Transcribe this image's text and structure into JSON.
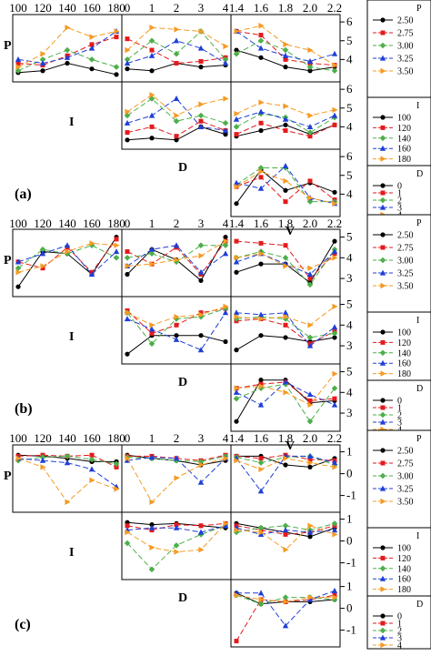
{
  "series_colors": [
    "#000000",
    "#e41a1c",
    "#4daf4a",
    "#1f3fd6",
    "#f59a23"
  ],
  "series_dash": [
    "",
    "6,3",
    "6,3",
    "6,3",
    "6,3"
  ],
  "series_marker": [
    "circle",
    "square",
    "diamond",
    "triangle-up",
    "triangle-right"
  ],
  "factors": {
    "P": {
      "label": "P",
      "levels": [
        "2.50",
        "2.75",
        "3.00",
        "3.25",
        "3.50"
      ]
    },
    "I": {
      "label": "I",
      "levels": [
        "100",
        "120",
        "140",
        "160",
        "180"
      ]
    },
    "D": {
      "label": "D",
      "levels": [
        "0",
        "1",
        "2",
        "3",
        "4"
      ]
    },
    "V": {
      "label": "V",
      "levels": [
        "1.4",
        "1.6",
        "1.8",
        "2.0",
        "2.2"
      ]
    }
  },
  "top_tick_labels": {
    "I": [
      "100",
      "120",
      "140",
      "160",
      "180"
    ],
    "D": [
      "0",
      "1",
      "2",
      "3",
      "4"
    ],
    "V": [
      "1.4",
      "1.6",
      "1.8",
      "2.0",
      "2.2"
    ]
  },
  "chart_data": [
    {
      "type": "line",
      "panel_label": "(a)",
      "right_ticks": [
        "6",
        "5",
        "4"
      ],
      "ylim": [
        3,
        6.2
      ],
      "cells": [
        {
          "row": "P",
          "col": "I",
          "series": [
            [
              3.3,
              3.4,
              3.8,
              3.5,
              3.2
            ],
            [
              3.8,
              3.7,
              4.2,
              4.8,
              5.2
            ],
            [
              3.4,
              4.0,
              4.5,
              4.0,
              3.6
            ],
            [
              4.0,
              3.8,
              4.1,
              4.6,
              5.5
            ],
            [
              3.6,
              4.3,
              5.7,
              5.2,
              5.5
            ]
          ]
        },
        {
          "row": "P",
          "col": "D",
          "series": [
            [
              3.5,
              3.4,
              3.8,
              3.6,
              3.7
            ],
            [
              5.1,
              4.5,
              3.8,
              3.9,
              4.1
            ],
            [
              4.0,
              5.0,
              4.3,
              5.5,
              4.0
            ],
            [
              3.8,
              4.2,
              5.0,
              4.6,
              3.8
            ],
            [
              4.5,
              5.7,
              5.6,
              5.5,
              4.7
            ]
          ]
        },
        {
          "row": "P",
          "col": "V",
          "series": [
            [
              4.5,
              4.1,
              3.6,
              3.4,
              3.6
            ],
            [
              5.5,
              5.3,
              4.0,
              3.8,
              3.7
            ],
            [
              4.3,
              5.0,
              4.5,
              3.6,
              3.4
            ],
            [
              5.5,
              4.6,
              4.2,
              3.9,
              4.3
            ],
            [
              5.5,
              5.8,
              4.8,
              4.5,
              3.7
            ]
          ]
        },
        {
          "row": "I",
          "col": "D",
          "series": [
            [
              3.3,
              3.4,
              3.3,
              4.0,
              3.6
            ],
            [
              3.7,
              4.0,
              3.5,
              4.3,
              3.8
            ],
            [
              4.6,
              5.5,
              4.3,
              4.6,
              4.2
            ],
            [
              4.2,
              4.6,
              5.5,
              4.0,
              3.8
            ],
            [
              4.8,
              5.7,
              4.6,
              5.2,
              5.5
            ]
          ]
        },
        {
          "row": "I",
          "col": "V",
          "series": [
            [
              3.5,
              3.8,
              4.1,
              3.6,
              4.1
            ],
            [
              3.6,
              4.2,
              3.8,
              3.5,
              4.1
            ],
            [
              4.0,
              4.7,
              4.5,
              3.7,
              4.5
            ],
            [
              4.4,
              4.8,
              4.4,
              4.0,
              4.6
            ],
            [
              4.7,
              5.3,
              5.1,
              4.6,
              4.9
            ]
          ]
        },
        {
          "row": "D",
          "col": "V",
          "series": [
            [
              3.5,
              5.3,
              4.2,
              4.6,
              4.1
            ],
            [
              4.4,
              4.9,
              3.6,
              4.7,
              3.7
            ],
            [
              4.5,
              5.4,
              5.4,
              3.6,
              3.6
            ],
            [
              4.6,
              4.3,
              5.5,
              3.8,
              3.5
            ],
            [
              4.4,
              5.2,
              4.7,
              3.8,
              3.5
            ]
          ]
        }
      ]
    },
    {
      "type": "line",
      "panel_label": "(b)",
      "right_ticks": [
        "5",
        "4",
        "3"
      ],
      "ylim": [
        2.3,
        5.2
      ],
      "cells": [
        {
          "row": "P",
          "col": "I",
          "series": [
            [
              2.6,
              4.3,
              4.2,
              3.2,
              5.0
            ],
            [
              3.8,
              3.5,
              4.5,
              3.3,
              4.9
            ],
            [
              3.5,
              4.4,
              4.2,
              4.6,
              4.0
            ],
            [
              3.8,
              4.2,
              4.6,
              3.2,
              4.3
            ],
            [
              3.3,
              3.6,
              4.3,
              4.7,
              4.6
            ]
          ]
        },
        {
          "row": "P",
          "col": "D",
          "series": [
            [
              3.2,
              4.4,
              3.9,
              2.9,
              5.0
            ],
            [
              4.3,
              3.7,
              4.5,
              3.2,
              4.8
            ],
            [
              4.0,
              4.2,
              3.8,
              4.6,
              4.6
            ],
            [
              3.6,
              4.4,
              4.6,
              3.3,
              4.2
            ],
            [
              3.6,
              3.7,
              3.9,
              4.1,
              4.8
            ]
          ]
        },
        {
          "row": "P",
          "col": "V",
          "series": [
            [
              3.3,
              3.7,
              3.7,
              2.8,
              4.8
            ],
            [
              4.8,
              4.7,
              4.6,
              3.0,
              4.2
            ],
            [
              4.0,
              4.3,
              4.0,
              2.7,
              4.4
            ],
            [
              3.8,
              4.2,
              3.7,
              3.2,
              4.3
            ],
            [
              4.0,
              4.2,
              3.6,
              3.5,
              4.0
            ]
          ]
        },
        {
          "row": "I",
          "col": "D",
          "series": [
            [
              2.6,
              3.5,
              3.5,
              3.5,
              3.2
            ],
            [
              4.7,
              3.6,
              4.0,
              4.6,
              4.8
            ],
            [
              4.6,
              3.1,
              4.3,
              4.4,
              4.8
            ],
            [
              4.3,
              3.8,
              3.3,
              2.8,
              4.6
            ],
            [
              4.6,
              4.0,
              4.4,
              4.5,
              4.9
            ]
          ]
        },
        {
          "row": "I",
          "col": "V",
          "series": [
            [
              2.8,
              3.5,
              3.4,
              3.2,
              3.4
            ],
            [
              4.2,
              4.3,
              4.0,
              3.1,
              3.7
            ],
            [
              4.3,
              4.4,
              4.3,
              3.4,
              3.6
            ],
            [
              4.6,
              4.5,
              4.6,
              3.0,
              3.9
            ],
            [
              4.4,
              4.3,
              4.4,
              4.0,
              4.9
            ]
          ]
        },
        {
          "row": "D",
          "col": "V",
          "series": [
            [
              2.6,
              4.6,
              4.6,
              3.5,
              3.6
            ],
            [
              4.2,
              4.4,
              4.5,
              3.6,
              3.7
            ],
            [
              3.7,
              4.2,
              4.4,
              2.6,
              4.2
            ],
            [
              4.0,
              3.4,
              4.5,
              3.9,
              3.4
            ],
            [
              4.2,
              4.3,
              4.0,
              3.4,
              4.9
            ]
          ]
        }
      ]
    },
    {
      "type": "line",
      "panel_label": "(c)",
      "right_ticks": [
        "1",
        "0",
        "-1"
      ],
      "ylim": [
        -1.6,
        1.15
      ],
      "cells": [
        {
          "row": "P",
          "col": "I",
          "series": [
            [
              0.85,
              0.8,
              0.7,
              0.55,
              0.55
            ],
            [
              0.8,
              0.85,
              0.8,
              0.85,
              0.3
            ],
            [
              0.6,
              0.75,
              0.8,
              0.65,
              0.45
            ],
            [
              0.7,
              0.6,
              0.5,
              0.2,
              -0.6
            ],
            [
              0.7,
              0.3,
              -1.3,
              -0.3,
              -0.7
            ]
          ]
        },
        {
          "row": "P",
          "col": "D",
          "series": [
            [
              0.85,
              0.7,
              0.6,
              0.4,
              0.6
            ],
            [
              0.8,
              0.8,
              0.7,
              0.6,
              0.85
            ],
            [
              0.75,
              0.7,
              0.6,
              0.55,
              0.8
            ],
            [
              0.6,
              0.75,
              0.7,
              -0.4,
              0.7
            ],
            [
              0.7,
              -1.3,
              -0.2,
              0.4,
              0.7
            ]
          ]
        },
        {
          "row": "P",
          "col": "V",
          "series": [
            [
              0.8,
              0.8,
              0.4,
              0.3,
              0.7
            ],
            [
              0.8,
              0.7,
              0.85,
              0.65,
              0.6
            ],
            [
              0.75,
              0.5,
              0.75,
              0.8,
              0.4
            ],
            [
              0.7,
              -0.8,
              0.8,
              0.8,
              0.5
            ],
            [
              0.6,
              0.2,
              0.7,
              0.5,
              0.3
            ]
          ]
        },
        {
          "row": "I",
          "col": "D",
          "series": [
            [
              0.85,
              0.75,
              0.8,
              0.7,
              0.6
            ],
            [
              0.7,
              0.5,
              0.75,
              0.7,
              0.8
            ],
            [
              -0.1,
              -1.3,
              -0.2,
              0.3,
              0.7
            ],
            [
              0.5,
              0.6,
              0.6,
              0.4,
              0.7
            ],
            [
              0.4,
              -0.3,
              -0.5,
              -0.4,
              0.8
            ]
          ]
        },
        {
          "row": "I",
          "col": "V",
          "series": [
            [
              0.8,
              0.6,
              0.4,
              0.2,
              0.6
            ],
            [
              0.7,
              0.5,
              0.3,
              0.4,
              0.7
            ],
            [
              0.4,
              0.6,
              0.7,
              0.5,
              0.8
            ],
            [
              0.6,
              0.3,
              0.5,
              0.4,
              0.5
            ],
            [
              0.5,
              0.4,
              -0.4,
              0.7,
              0.3
            ]
          ]
        },
        {
          "row": "D",
          "col": "V",
          "series": [
            [
              0.7,
              0.2,
              0.3,
              0.3,
              0.4
            ],
            [
              -1.5,
              0.4,
              0.3,
              0.4,
              0.6
            ],
            [
              0.6,
              0.2,
              0.5,
              0.5,
              0.4
            ],
            [
              0.7,
              0.7,
              -0.8,
              0.4,
              0.8
            ],
            [
              0.6,
              0.4,
              0.3,
              0.5,
              0.5
            ]
          ]
        }
      ]
    }
  ]
}
